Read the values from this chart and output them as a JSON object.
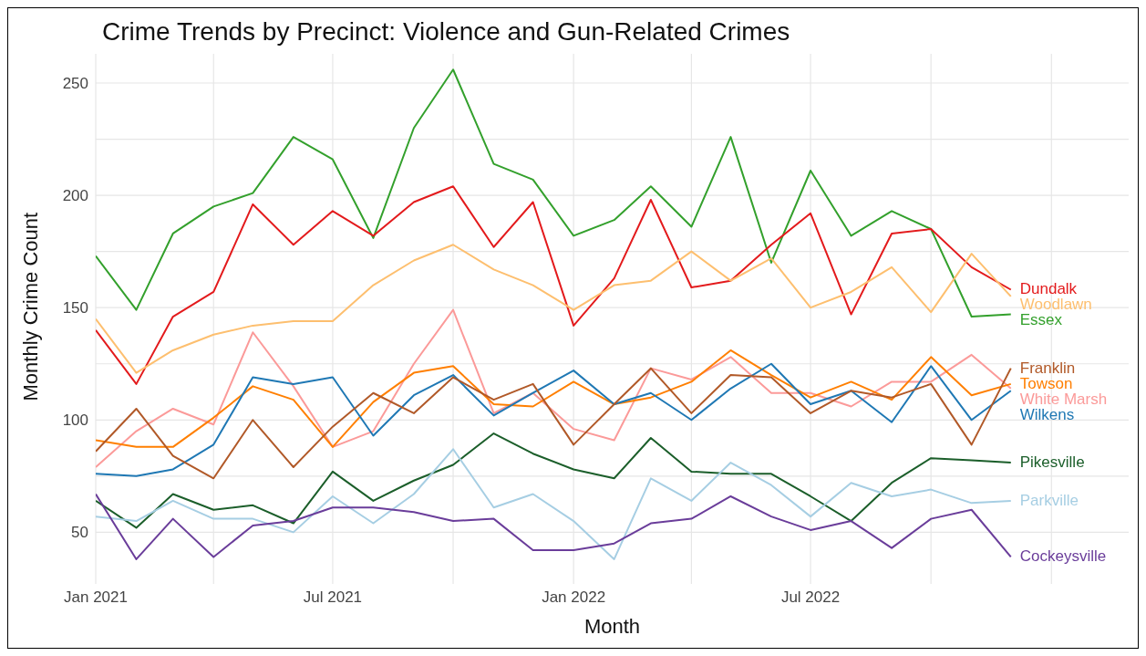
{
  "chart_data": {
    "type": "line",
    "title": "Crime Trends by Precinct: Violence and Gun-Related Crimes",
    "xlabel": "Month",
    "ylabel": "Monthly Crime Count",
    "x": [
      "2021-01",
      "2021-02",
      "2021-03",
      "2021-04",
      "2021-05",
      "2021-06",
      "2021-07",
      "2021-08",
      "2021-09",
      "2021-10",
      "2021-11",
      "2021-12",
      "2022-01",
      "2022-02",
      "2022-03",
      "2022-04",
      "2022-05",
      "2022-06",
      "2022-07",
      "2022-08",
      "2022-09",
      "2022-10",
      "2022-11",
      "2022-12"
    ],
    "series": [
      {
        "name": "Essex",
        "color": "#33a02c",
        "values": [
          173,
          149,
          183,
          195,
          201,
          226,
          216,
          181,
          230,
          256,
          214,
          207,
          182,
          189,
          204,
          186,
          226,
          170,
          211,
          182,
          193,
          185,
          146,
          147
        ]
      },
      {
        "name": "Dundalk",
        "color": "#e31a1c",
        "values": [
          140,
          116,
          146,
          157,
          196,
          178,
          193,
          182,
          197,
          204,
          177,
          197,
          142,
          163,
          198,
          159,
          162,
          178,
          192,
          147,
          183,
          185,
          168,
          158
        ]
      },
      {
        "name": "Woodlawn",
        "color": "#fdbf6f",
        "values": [
          145,
          121,
          131,
          138,
          142,
          144,
          144,
          160,
          171,
          178,
          167,
          160,
          149,
          160,
          162,
          175,
          162,
          172,
          150,
          157,
          168,
          148,
          174,
          155
        ]
      },
      {
        "name": "White Marsh",
        "color": "#fb9a99",
        "values": [
          79,
          95,
          105,
          98,
          139,
          115,
          88,
          95,
          125,
          149,
          103,
          112,
          96,
          91,
          123,
          118,
          128,
          112,
          112,
          106,
          117,
          117,
          129,
          114
        ]
      },
      {
        "name": "Towson",
        "color": "#ff7f00",
        "values": [
          91,
          88,
          88,
          101,
          115,
          109,
          88,
          108,
          121,
          124,
          107,
          106,
          117,
          107,
          110,
          117,
          131,
          120,
          110,
          117,
          109,
          128,
          111,
          116
        ]
      },
      {
        "name": "Wilkens",
        "color": "#1f78b4",
        "values": [
          76,
          75,
          78,
          89,
          119,
          116,
          119,
          93,
          111,
          120,
          102,
          112,
          122,
          107,
          112,
          100,
          114,
          125,
          107,
          113,
          99,
          124,
          100,
          113
        ]
      },
      {
        "name": "Franklin",
        "color": "#b15928",
        "values": [
          86,
          105,
          84,
          74,
          100,
          79,
          97,
          112,
          103,
          119,
          109,
          116,
          89,
          107,
          123,
          103,
          120,
          119,
          103,
          113,
          110,
          116,
          89,
          123
        ]
      },
      {
        "name": "Pikesville",
        "color": "#1b5e2a",
        "values": [
          64,
          52,
          67,
          60,
          62,
          54,
          77,
          64,
          73,
          80,
          94,
          85,
          78,
          74,
          92,
          77,
          76,
          76,
          66,
          55,
          72,
          83,
          82,
          81
        ]
      },
      {
        "name": "Parkville",
        "color": "#a6cee3",
        "values": [
          57,
          55,
          64,
          56,
          56,
          50,
          66,
          54,
          67,
          87,
          61,
          67,
          55,
          38,
          74,
          64,
          81,
          71,
          57,
          72,
          66,
          69,
          63,
          64
        ]
      },
      {
        "name": "Cockeysville",
        "color": "#6a3d9a",
        "values": [
          67,
          38,
          56,
          39,
          53,
          55,
          61,
          61,
          59,
          55,
          56,
          42,
          42,
          45,
          54,
          56,
          66,
          57,
          51,
          55,
          43,
          56,
          60,
          39
        ]
      }
    ],
    "xlim": [
      "2021-01",
      "2023-03"
    ],
    "xticks": [
      {
        "value": "2021-01",
        "label": "Jan 2021"
      },
      {
        "value": "2021-04",
        "label": null
      },
      {
        "value": "2021-07",
        "label": "Jul 2021"
      },
      {
        "value": "2021-10",
        "label": null
      },
      {
        "value": "2022-01",
        "label": "Jan 2022"
      },
      {
        "value": "2022-04",
        "label": null
      },
      {
        "value": "2022-07",
        "label": "Jul 2022"
      },
      {
        "value": "2022-10",
        "label": null
      },
      {
        "value": "2023-01",
        "label": null
      }
    ],
    "ylim": [
      27,
      263
    ],
    "yticks": [
      50,
      {
        "value": 75,
        "label": null
      },
      100,
      {
        "value": 125,
        "label": null
      },
      150,
      {
        "value": 175,
        "label": null
      },
      200,
      {
        "value": 225,
        "label": null
      },
      250
    ],
    "grid": true,
    "legend": false,
    "marker": "none",
    "line_style": "solid"
  }
}
